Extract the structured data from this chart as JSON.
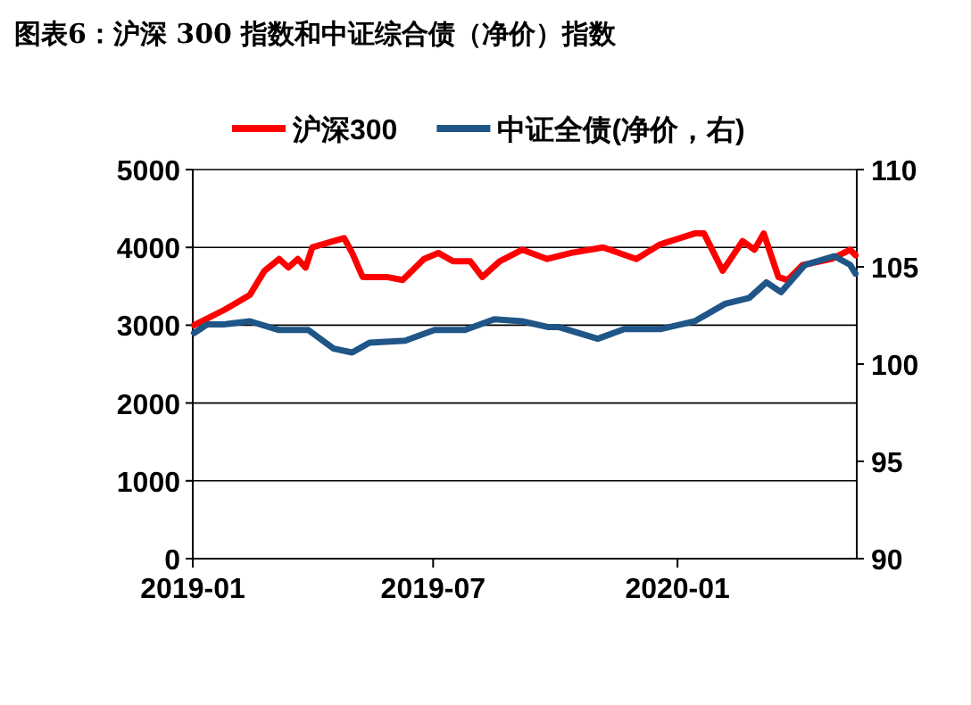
{
  "chart_data": {
    "type": "line",
    "title": "图表6：沪深 300 指数和中证综合债（净价）指数",
    "xlim": [
      "2019-01-01",
      "2020-05-15"
    ],
    "xticks": [
      {
        "value": "2019-01-01",
        "label": "2019-01"
      },
      {
        "value": "2019-07-01",
        "label": "2019-07"
      },
      {
        "value": "2020-01-01",
        "label": "2020-01"
      }
    ],
    "ylim": [
      0,
      5000
    ],
    "yticks": [
      0,
      1000,
      2000,
      3000,
      4000,
      5000
    ],
    "y2lim": [
      90,
      110
    ],
    "y2ticks": [
      90,
      95,
      100,
      105,
      110
    ],
    "grid": "y",
    "legend": "top",
    "line_style": "solid",
    "marker": "none",
    "series": [
      {
        "name": "沪深300",
        "color": "#ff0000",
        "x": [
          "2019-01-02",
          "2019-01-25",
          "2019-02-13",
          "2019-02-24",
          "2019-03-07",
          "2019-03-14",
          "2019-03-21",
          "2019-03-27",
          "2019-04-01",
          "2019-04-17",
          "2019-04-25",
          "2019-05-01",
          "2019-05-09",
          "2019-05-27",
          "2019-06-08",
          "2019-06-24",
          "2019-07-05",
          "2019-07-16",
          "2019-07-29",
          "2019-08-07",
          "2019-08-20",
          "2019-09-06",
          "2019-09-25",
          "2019-10-13",
          "2019-11-06",
          "2019-12-01",
          "2019-12-19",
          "2020-01-14",
          "2020-01-21",
          "2020-02-04",
          "2020-02-19",
          "2020-02-28",
          "2020-03-06",
          "2020-03-17",
          "2020-03-24",
          "2020-04-04",
          "2020-04-26",
          "2020-05-10",
          "2020-05-14"
        ],
        "values": [
          3000,
          3200,
          3390,
          3700,
          3850,
          3740,
          3850,
          3740,
          4000,
          4080,
          4120,
          3930,
          3620,
          3620,
          3580,
          3850,
          3930,
          3820,
          3820,
          3620,
          3820,
          3970,
          3850,
          3930,
          4000,
          3850,
          4040,
          4180,
          4180,
          3700,
          4080,
          3970,
          4180,
          3620,
          3580,
          3770,
          3850,
          3970,
          3900
        ]
      },
      {
        "name": "中证全债(净价，右)",
        "color": "#1f5587",
        "axis": "y2",
        "x": [
          "2019-01-02",
          "2019-01-12",
          "2019-01-25",
          "2019-02-13",
          "2019-03-07",
          "2019-03-29",
          "2019-04-17",
          "2019-05-01",
          "2019-05-14",
          "2019-06-10",
          "2019-07-02",
          "2019-07-25",
          "2019-08-16",
          "2019-09-06",
          "2019-09-26",
          "2019-10-04",
          "2019-11-02",
          "2019-11-22",
          "2019-12-19",
          "2020-01-14",
          "2020-02-06",
          "2020-02-24",
          "2020-03-08",
          "2020-03-19",
          "2020-04-06",
          "2020-04-28",
          "2020-05-10",
          "2020-05-14"
        ],
        "values": [
          101.6,
          102.05,
          102.05,
          102.2,
          101.75,
          101.75,
          100.8,
          100.6,
          101.1,
          101.2,
          101.75,
          101.75,
          102.3,
          102.2,
          101.9,
          101.9,
          101.3,
          101.8,
          101.8,
          102.2,
          103.1,
          103.4,
          104.2,
          103.7,
          105.1,
          105.55,
          105.1,
          104.65
        ]
      }
    ]
  }
}
